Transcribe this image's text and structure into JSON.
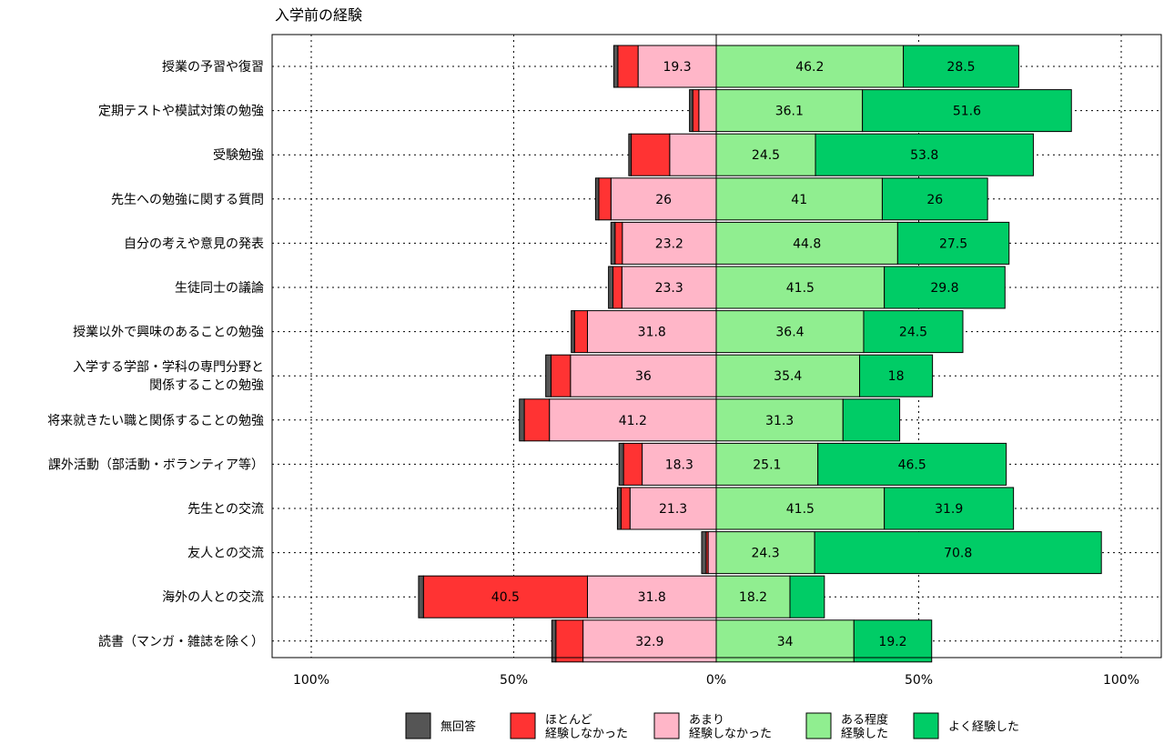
{
  "chart_data": {
    "type": "bar",
    "orientation": "horizontal",
    "stacking": "diverging",
    "title": "入学前の経験",
    "xlabel": "",
    "ylabel": "",
    "xlim": [
      -100,
      100
    ],
    "x_ticks": [
      -100,
      -50,
      0,
      50,
      100
    ],
    "x_tick_labels": [
      "100%",
      "50%",
      "0%",
      "50%",
      "100%"
    ],
    "grid": true,
    "legend_position": "bottom",
    "categories": [
      [
        "授業の予習や復習"
      ],
      [
        "定期テストや模試対策の勉強"
      ],
      [
        "受験勉強"
      ],
      [
        "先生への勉強に関する質問"
      ],
      [
        "自分の考えや意見の発表"
      ],
      [
        "生徒同士の議論"
      ],
      [
        "授業以外で興味のあることの勉強"
      ],
      [
        "入学する学部・学科の専門分野と",
        "関係することの勉強"
      ],
      [
        "将来就きたい職と関係することの勉強"
      ],
      [
        "課外活動（部活動・ボランティア等）"
      ],
      [
        "先生との交流"
      ],
      [
        "友人との交流"
      ],
      [
        "海外の人との交流"
      ],
      [
        "読書（マンガ・雑誌を除く）"
      ]
    ],
    "series": [
      {
        "name": "無回答",
        "side": "negative",
        "color": "#555555",
        "values": [
          1.0,
          0.8,
          0.6,
          0.8,
          1.0,
          1.1,
          0.8,
          1.3,
          1.2,
          1.1,
          0.9,
          1.1,
          1.2,
          1.0
        ]
      },
      {
        "name": "ほとんど\n経験しなかった",
        "side": "negative",
        "color": "#ff3333",
        "values": [
          5.0,
          1.5,
          9.5,
          3.0,
          1.8,
          2.2,
          3.2,
          4.8,
          6.2,
          4.6,
          2.2,
          0.5,
          40.5,
          6.7
        ]
      },
      {
        "name": "あまり\n経験しなかった",
        "side": "negative",
        "color": "#ffb6c8",
        "values": [
          19.3,
          4.3,
          11.5,
          26,
          23.2,
          23.3,
          31.8,
          36,
          41.2,
          18.3,
          21.3,
          2.0,
          31.8,
          32.9
        ]
      },
      {
        "name": "ある程度\n経験した",
        "side": "positive",
        "color": "#90ee90",
        "values": [
          46.2,
          36.1,
          24.5,
          41,
          44.8,
          41.5,
          36.4,
          35.4,
          31.3,
          25.1,
          41.5,
          24.3,
          18.2,
          34
        ]
      },
      {
        "name": "よく経験した",
        "side": "positive",
        "color": "#00cc66",
        "values": [
          28.5,
          51.6,
          53.8,
          26,
          27.5,
          29.8,
          24.5,
          18,
          14,
          46.5,
          31.9,
          70.8,
          8.5,
          19.2
        ]
      }
    ],
    "labels_shown": [
      [
        null,
        null,
        "19.3",
        "46.2",
        "28.5"
      ],
      [
        null,
        null,
        null,
        "36.1",
        "51.6"
      ],
      [
        null,
        null,
        null,
        "24.5",
        "53.8"
      ],
      [
        null,
        null,
        "26",
        "41",
        "26"
      ],
      [
        null,
        null,
        "23.2",
        "44.8",
        "27.5"
      ],
      [
        null,
        null,
        "23.3",
        "41.5",
        "29.8"
      ],
      [
        null,
        null,
        "31.8",
        "36.4",
        "24.5"
      ],
      [
        null,
        null,
        "36",
        "35.4",
        "18"
      ],
      [
        null,
        null,
        "41.2",
        "31.3",
        null
      ],
      [
        null,
        null,
        "18.3",
        "25.1",
        "46.5"
      ],
      [
        null,
        null,
        "21.3",
        "41.5",
        "31.9"
      ],
      [
        null,
        null,
        null,
        "24.3",
        "70.8"
      ],
      [
        null,
        "40.5",
        "31.8",
        "18.2",
        null
      ],
      [
        null,
        null,
        "32.9",
        "34",
        "19.2"
      ]
    ]
  }
}
